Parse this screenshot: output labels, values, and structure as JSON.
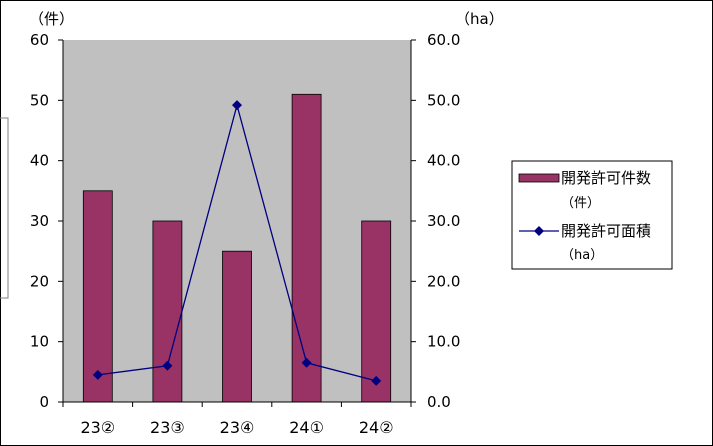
{
  "chart_data": {
    "type": "bar",
    "categories": [
      "23②",
      "23③",
      "23④",
      "24①",
      "24②"
    ],
    "series": [
      {
        "name": "開発許可件数（件）",
        "type": "bar",
        "axis": "left",
        "values": [
          35,
          30,
          25,
          51,
          30
        ],
        "color": "#993366"
      },
      {
        "name": "開発許可面積（ha）",
        "type": "line",
        "axis": "right",
        "values": [
          4.5,
          6.0,
          49.2,
          6.5,
          3.5
        ],
        "color": "#000080"
      }
    ],
    "y_left": {
      "unit": "（件）",
      "ylim": [
        0,
        60
      ],
      "ticks": [
        "0",
        "10",
        "20",
        "30",
        "40",
        "50",
        "60"
      ]
    },
    "y_right": {
      "unit": "（ha）",
      "ylim": [
        0,
        60
      ],
      "ticks": [
        "0.0",
        "10.0",
        "20.0",
        "30.0",
        "40.0",
        "50.0",
        "60.0"
      ]
    },
    "legend": {
      "placement": "right",
      "items": [
        {
          "line1": "開発許可件数",
          "line2": "（件）"
        },
        {
          "line1": "開発許可面積",
          "line2": "（ha）"
        }
      ]
    },
    "grid": false,
    "plot_background": "#c0c0c0"
  }
}
